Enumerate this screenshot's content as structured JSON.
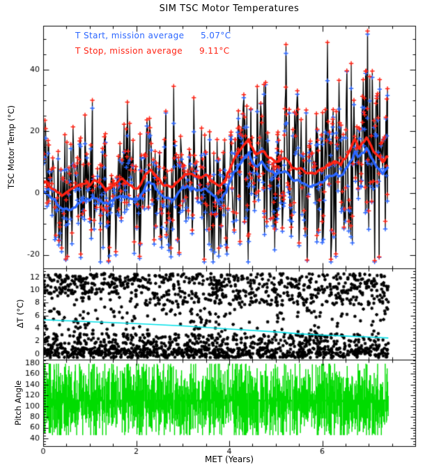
{
  "title": "SIM TSC Motor Temperatures",
  "colors": {
    "t_start": "#2b66ff",
    "t_stop": "#ff2213",
    "trend": "#00e0e8",
    "pitch": "#00dc00",
    "data": "#000000",
    "background": "#ffffff"
  },
  "legend": [
    {
      "label": "T Start, mission average",
      "value": "5.07°C",
      "color_key": "t_start"
    },
    {
      "label": "T Stop, mission average",
      "value": "9.11°C",
      "color_key": "t_stop"
    }
  ],
  "x_axis": {
    "label": "MET (Years)",
    "lim": [
      0,
      8
    ],
    "ticks": [
      0,
      2,
      4,
      6
    ],
    "minor_step": 0.5,
    "data_end": 7.42
  },
  "seed": 20110607,
  "chart_data": [
    {
      "type": "scatter",
      "name": "tsc-motor-temp",
      "ylabel": "TSC Motor Temp (°C)",
      "ylim": [
        -24.4,
        54.2
      ],
      "yticks": [
        -20,
        0,
        20,
        40
      ],
      "ytick_minor_step": 5,
      "mean_x": [
        0,
        0.1,
        0.25,
        0.4,
        0.55,
        0.7,
        0.85,
        1.0,
        1.1,
        1.25,
        1.4,
        1.55,
        1.7,
        1.85,
        2.0,
        2.1,
        2.25,
        2.35,
        2.45,
        2.6,
        2.75,
        2.9,
        3.05,
        3.2,
        3.35,
        3.5,
        3.65,
        3.8,
        3.9,
        4.0,
        4.1,
        4.25,
        4.42,
        4.55,
        4.7,
        4.85,
        5.0,
        5.2,
        5.35,
        5.5,
        5.65,
        5.8,
        5.95,
        6.1,
        6.25,
        6.4,
        6.55,
        6.7,
        6.8,
        6.95,
        7.1,
        7.3,
        7.42
      ],
      "series": [
        {
          "name": "T Start",
          "mission_average_c": 5.07,
          "color_key": "t_start",
          "mean_y": [
            0.5,
            -0.5,
            -2.5,
            -5.0,
            -5.5,
            -4.0,
            -2.0,
            -2.3,
            -1.2,
            -2.5,
            -3.6,
            -1.8,
            -0.8,
            -1.5,
            -2.5,
            -0.8,
            3.0,
            3.2,
            1.2,
            -1.8,
            -2.3,
            -0.3,
            2.0,
            1.5,
            0.8,
            1.2,
            -1.0,
            -2.5,
            -0.5,
            3.0,
            6.5,
            9.5,
            13.0,
            8.5,
            9.8,
            7.5,
            6.0,
            7.0,
            4.5,
            4.0,
            2.5,
            2.0,
            3.5,
            4.8,
            6.2,
            5.5,
            8.5,
            13.0,
            11.5,
            14.5,
            10.0,
            6.5,
            8.0
          ]
        },
        {
          "name": "T Stop",
          "mission_average_c": 9.11,
          "color_key": "t_stop",
          "mean_y": [
            4.0,
            3.0,
            1.0,
            -0.5,
            0.5,
            2.0,
            3.5,
            3.0,
            4.5,
            2.5,
            1.0,
            3.0,
            4.5,
            3.0,
            1.5,
            3.0,
            7.0,
            7.2,
            5.0,
            2.5,
            2.0,
            3.5,
            6.0,
            6.5,
            5.0,
            6.0,
            3.5,
            2.0,
            4.0,
            7.5,
            11.0,
            14.0,
            17.0,
            12.5,
            14.0,
            11.5,
            10.0,
            11.5,
            8.5,
            8.0,
            6.5,
            6.0,
            7.5,
            8.8,
            10.2,
            9.5,
            12.5,
            17.0,
            14.5,
            18.5,
            13.5,
            10.5,
            12.0
          ]
        }
      ],
      "scatter_model": {
        "n_step_years": 0.0145,
        "sigma_low": 9.5,
        "sigma_slope": 0.9,
        "clamp": [
          -22.3,
          51.5
        ],
        "stop_clamp": 52.5,
        "delta_bands": [
          [
            0,
            1.5,
            0.34
          ],
          [
            2.0,
            3.2,
            0.24
          ],
          [
            3.3,
            7.4,
            0.12
          ],
          [
            7.6,
            12.6,
            0.3
          ]
        ]
      }
    },
    {
      "type": "scatter",
      "name": "delta-t",
      "ylabel": "ΔT (°C)",
      "ylim": [
        -0.9,
        13.4
      ],
      "yticks": [
        0,
        2,
        4,
        6,
        8,
        10,
        12
      ],
      "ytick_minor_step": 0.5,
      "bands": [
        {
          "range": [
            -0.6,
            1.0
          ],
          "n": 700
        },
        {
          "range": [
            1.1,
            3.2
          ],
          "n": 380
        },
        {
          "range": [
            3.4,
            7.4
          ],
          "n": 150
        },
        {
          "range": [
            7.6,
            12.6
          ],
          "n": 750,
          "left_narrow": [
            9.4,
            12.5
          ],
          "left_until": 2.2
        }
      ],
      "trend": {
        "x": [
          0,
          1,
          2,
          3,
          4,
          5,
          5.5,
          6,
          6.5,
          7,
          7.42
        ],
        "y": [
          5.35,
          5.05,
          4.75,
          4.4,
          3.9,
          3.45,
          3.15,
          2.95,
          2.8,
          2.65,
          2.5
        ]
      }
    },
    {
      "type": "range",
      "name": "pitch-angle",
      "ylabel": "Pitch Angle",
      "ylim": [
        25.7,
        186.5
      ],
      "yticks": [
        40,
        60,
        80,
        100,
        120,
        140,
        160,
        180
      ],
      "ytick_minor_step": 5,
      "envelope": {
        "high_mean": 141,
        "high_sd": 26,
        "high_range": [
          112,
          179
        ],
        "low_mean": 74,
        "low_sd": 23,
        "low_range": [
          46,
          109
        ],
        "gap_probability": 0.03
      }
    }
  ]
}
